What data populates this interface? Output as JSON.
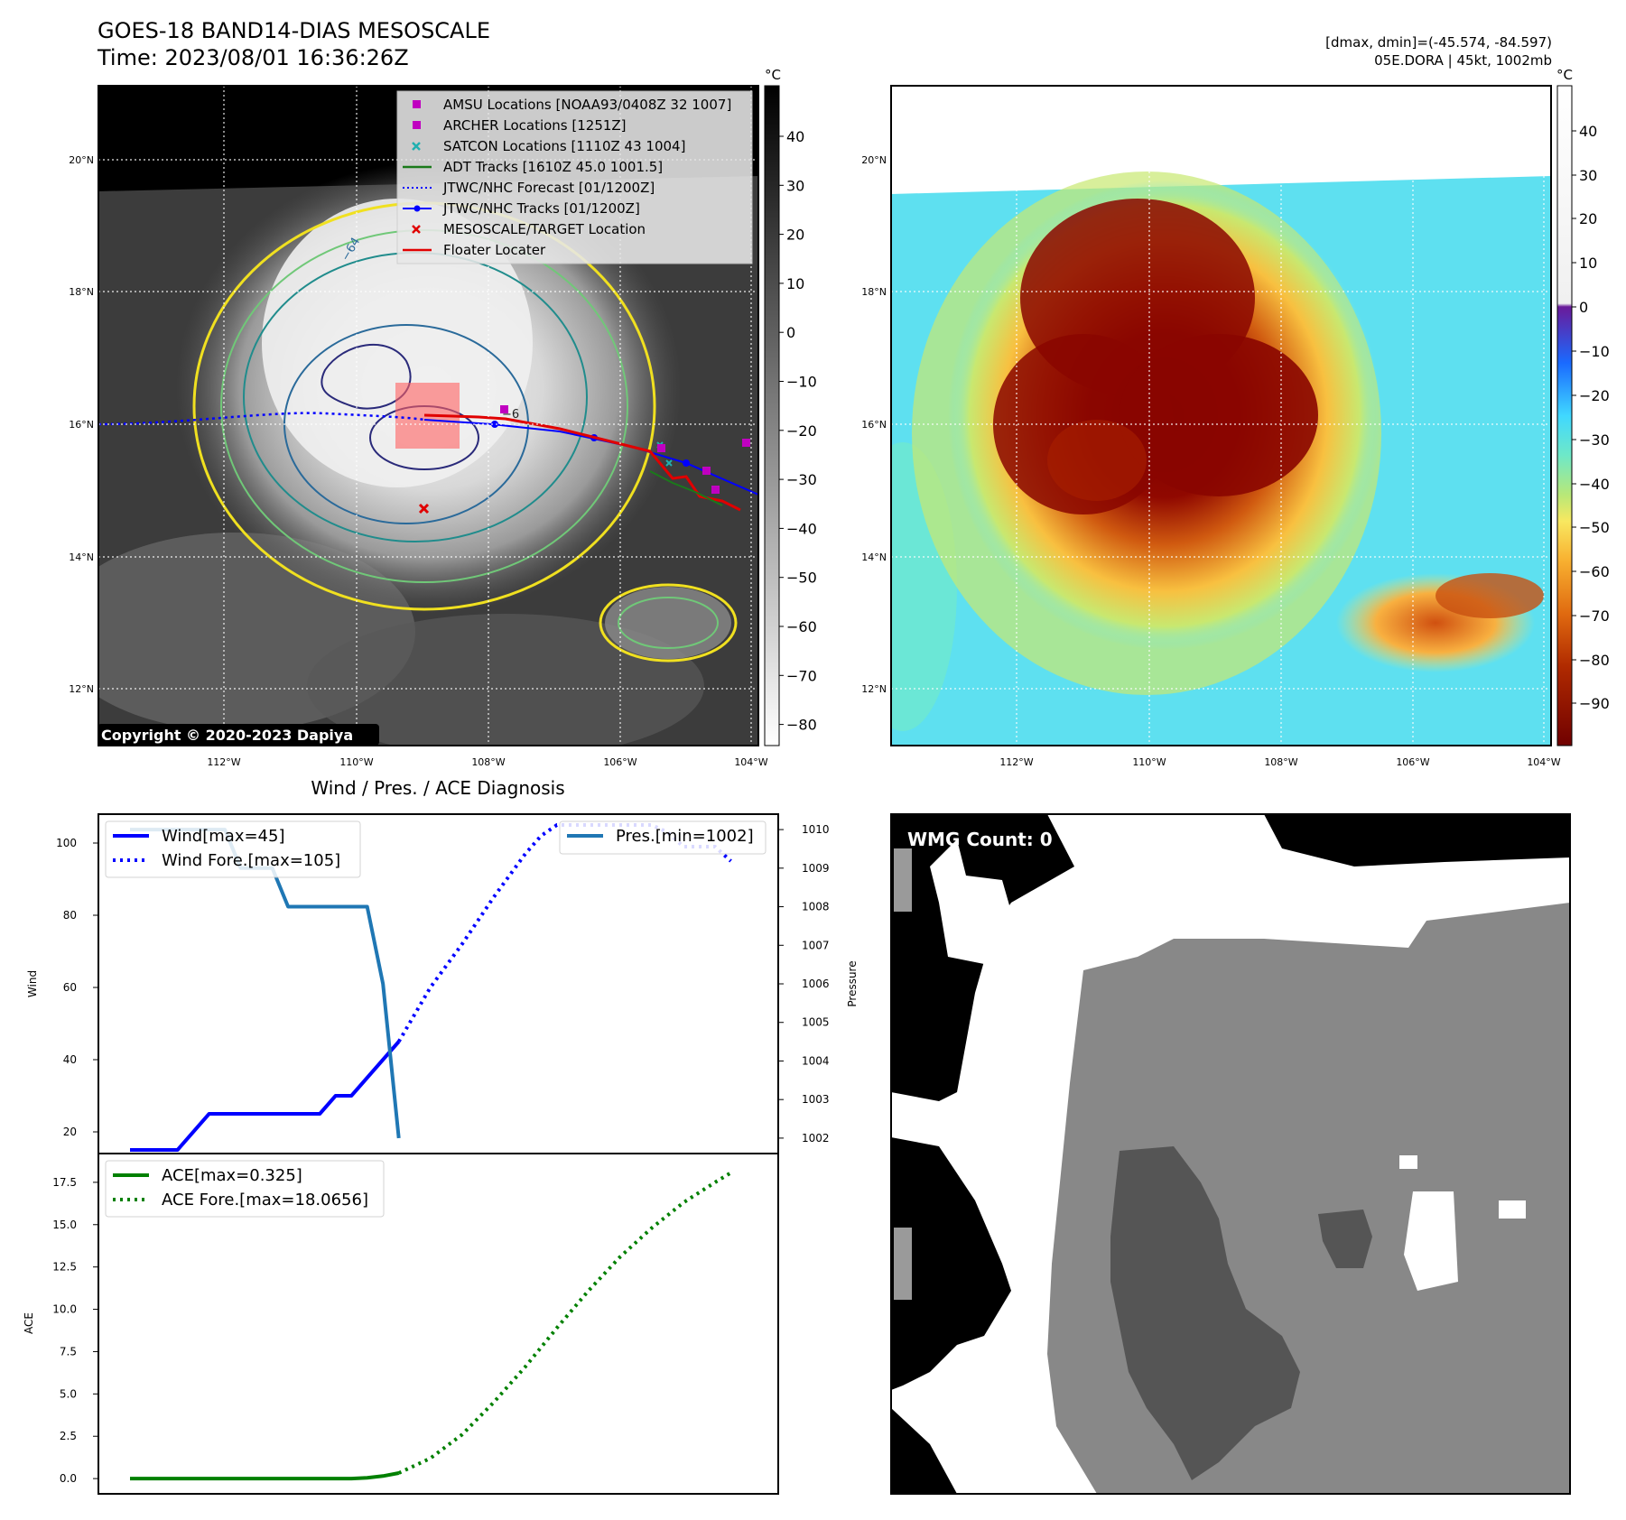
{
  "header": {
    "title": "GOES-18 BAND14-DIAS MESOSCALE",
    "time": "Time: 2023/08/01 16:36:26Z",
    "dmaxdmin": "[dmax, dmin]=(-45.574, -84.597)",
    "storm": "05E.DORA | 45kt, 1002mb"
  },
  "ir_panel": {
    "legend": [
      {
        "label": "AMSU Locations [NOAA93/0408Z 32 1007]",
        "marker": "square",
        "color": "#c000c0"
      },
      {
        "label": "ARCHER Locations [1251Z]",
        "marker": "square",
        "color": "#c000c0"
      },
      {
        "label": "SATCON Locations [1110Z 43 1004]",
        "marker": "x",
        "color": "#20b0b0"
      },
      {
        "label": "ADT Tracks [1610Z 45.0 1001.5]",
        "marker": "line",
        "color": "#1a7a1a"
      },
      {
        "label": "JTWC/NHC Forecast [01/1200Z]",
        "marker": "dotted",
        "color": "#0000ff"
      },
      {
        "label": "JTWC/NHC Tracks [01/1200Z]",
        "marker": "line-dot",
        "color": "#0000ff"
      },
      {
        "label": "MESOSCALE/TARGET Location",
        "marker": "x",
        "color": "#e00000"
      },
      {
        "label": "Floater Locater",
        "marker": "line",
        "color": "#e00000"
      }
    ],
    "copyright": "Copyright © 2020-2023 Dapiya",
    "colorbar_unit": "°C",
    "colorbar_ticks": [
      "40",
      "30",
      "20",
      "10",
      "0",
      "−10",
      "−20",
      "−30",
      "−40",
      "−50",
      "−60",
      "−70",
      "−80"
    ],
    "contour_label": "−64",
    "contour_label_b": "−6"
  },
  "color_panel": {
    "colorbar_unit": "°C",
    "colorbar_ticks": [
      "40",
      "30",
      "20",
      "10",
      "0",
      "−10",
      "−20",
      "−30",
      "−40",
      "−50",
      "−60",
      "−70",
      "−80",
      "−90"
    ]
  },
  "map_axes": {
    "lat_ticks": [
      "20°N",
      "18°N",
      "16°N",
      "14°N",
      "12°N"
    ],
    "lon_ticks": [
      "112°W",
      "110°W",
      "108°W",
      "106°W",
      "104°W"
    ]
  },
  "wmg_panel": {
    "label": "WMG Count: 0"
  },
  "chart_data": {
    "type": "line",
    "title": "Wind / Pres. / ACE Diagnosis",
    "x": [
      0,
      1,
      2,
      3,
      4,
      5,
      6,
      7,
      8,
      9,
      10,
      11,
      12,
      13,
      14,
      15,
      16,
      17,
      18,
      19,
      20,
      21,
      22,
      23,
      24,
      25,
      26,
      27,
      28,
      29,
      30,
      31,
      32,
      33,
      34,
      35,
      36,
      37,
      38,
      39,
      40
    ],
    "wind": {
      "ylabel": "Wind",
      "yticks": [
        20,
        40,
        60,
        80,
        100
      ],
      "ylim": [
        14,
        108
      ],
      "series": [
        {
          "name": "Wind[max=45]",
          "style": "solid",
          "color": "#0000ff",
          "x": [
            0,
            3,
            5,
            7,
            10,
            12,
            13,
            14,
            15,
            16,
            17
          ],
          "values": [
            15,
            15,
            25,
            25,
            25,
            25,
            30,
            30,
            35,
            40,
            45
          ]
        },
        {
          "name": "Wind Fore.[max=105]",
          "style": "dotted",
          "color": "#0000ff",
          "x": [
            17,
            19,
            21,
            23,
            25,
            26,
            27,
            28,
            29,
            30,
            31,
            32,
            33,
            34,
            35,
            36,
            37,
            38
          ],
          "values": [
            45,
            60,
            72,
            85,
            97,
            102,
            105,
            105,
            105,
            105,
            105,
            105,
            105,
            103,
            99,
            99,
            99,
            95
          ]
        }
      ]
    },
    "pressure": {
      "ylabel": "Pressure",
      "yticks": [
        1002,
        1003,
        1004,
        1005,
        1006,
        1007,
        1008,
        1009,
        1010
      ],
      "ylim": [
        1001.6,
        1010.4
      ],
      "series": [
        {
          "name": "Pres.[min=1002]",
          "style": "solid",
          "color": "#1f77b4",
          "x": [
            0,
            6,
            7,
            9,
            10,
            15,
            16,
            17
          ],
          "values": [
            1010,
            1010,
            1009,
            1009,
            1008,
            1008,
            1006,
            1002
          ]
        }
      ]
    },
    "ace": {
      "ylabel": "ACE",
      "yticks": [
        0.0,
        2.5,
        5.0,
        7.5,
        10.0,
        12.5,
        15.0,
        17.5
      ],
      "ylim": [
        -0.9,
        19.2
      ],
      "series": [
        {
          "name": "ACE[max=0.325]",
          "style": "solid",
          "color": "#008000",
          "x": [
            0,
            14,
            15,
            16,
            17
          ],
          "values": [
            0,
            0,
            0.05,
            0.15,
            0.325
          ]
        },
        {
          "name": "ACE Fore.[max=18.0656]",
          "style": "dotted",
          "color": "#008000",
          "x": [
            17,
            19,
            21,
            23,
            25,
            27,
            29,
            31,
            33,
            35,
            37,
            38
          ],
          "values": [
            0.325,
            1.2,
            2.6,
            4.5,
            6.6,
            8.9,
            11.1,
            13.1,
            14.8,
            16.3,
            17.5,
            18.0656
          ]
        }
      ]
    }
  }
}
